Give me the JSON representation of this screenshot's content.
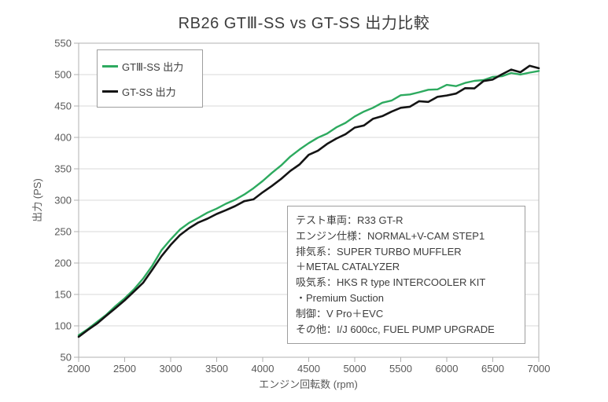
{
  "chart_data": {
    "type": "line",
    "title": "RB26 GTⅢ-SS vs GT-SS 出力比較",
    "xlabel": "エンジン回転数 (rpm)",
    "ylabel": "出力 (PS)",
    "xlim": [
      2000,
      7000
    ],
    "ylim": [
      50,
      550
    ],
    "x_ticks": [
      2000,
      2500,
      3000,
      3500,
      4000,
      4500,
      5000,
      5500,
      6000,
      6500,
      7000
    ],
    "y_ticks": [
      50,
      100,
      150,
      200,
      250,
      300,
      350,
      400,
      450,
      500,
      550
    ],
    "grid": "horizontal",
    "legend_position": "top-left",
    "x_start": 2000,
    "x_step": 100,
    "series": [
      {
        "name": "GTⅢ-SS 出力",
        "color": "#2daa5f",
        "values": [
          85,
          95,
          106,
          118,
          131,
          144,
          158,
          175,
          196,
          220,
          238,
          253,
          264,
          272,
          280,
          287,
          294,
          301,
          309,
          319,
          331,
          343,
          356,
          369,
          381,
          391,
          399,
          407,
          415,
          424,
          433,
          441,
          448,
          454,
          460,
          466,
          469,
          472,
          475,
          478,
          482,
          483,
          486,
          490,
          492,
          495,
          499,
          501,
          501,
          503,
          505
        ]
      },
      {
        "name": "GT-SS 出力",
        "color": "#141414",
        "values": [
          83,
          93,
          104,
          116,
          128,
          141,
          154,
          169,
          189,
          211,
          229,
          244,
          256,
          264,
          271,
          278,
          284,
          291,
          298,
          302,
          312,
          323,
          334,
          346,
          358,
          371,
          380,
          389,
          398,
          406,
          414,
          421,
          428,
          435,
          441,
          446,
          451,
          455,
          459,
          463,
          467,
          471,
          476,
          481,
          487,
          494,
          500,
          507,
          506,
          511,
          513
        ]
      }
    ]
  },
  "annotation_box": {
    "lines": [
      "テスト車両：R33 GT-R",
      "エンジン仕様：NORMAL+V-CAM STEP1",
      "排気系：SUPER TURBO MUFFLER",
      "＋METAL CATALYZER",
      "吸気系：HKS R type INTERCOOLER KIT",
      "・Premium Suction",
      "制御：V Pro＋EVC",
      "その他：I/J 600cc, FUEL PUMP UPGRADE"
    ]
  },
  "colors": {
    "gridline": "#d9d9d9",
    "plot_border": "#b0b0b0",
    "tick_text": "#595959",
    "title_text": "#3d3d3d"
  }
}
